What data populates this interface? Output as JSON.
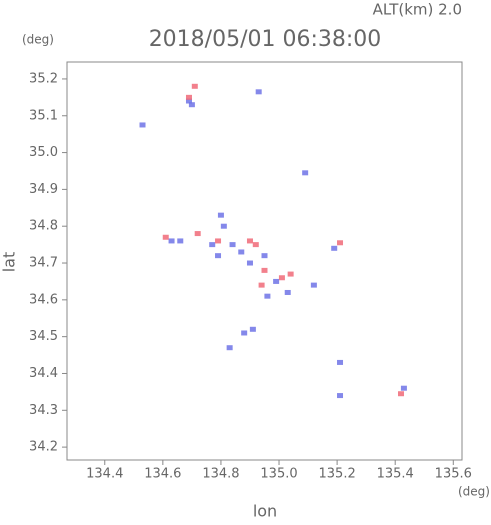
{
  "chart_data": {
    "type": "scatter",
    "title": "2018/05/01 06:38:00",
    "annotation": "ALT(km) 2.0",
    "y_unit": "(deg)",
    "x_unit": "(deg)",
    "x_label": "lon",
    "y_label": "lat",
    "xlim": [
      134.27,
      135.63
    ],
    "ylim": [
      34.165,
      35.246
    ],
    "xticks": [
      134.4,
      134.6,
      134.8,
      {
        "value": 135,
        "label": "135.0"
      },
      135.2,
      135.4,
      135.6
    ],
    "yticks": [
      34.2,
      34.3,
      34.4,
      34.5,
      34.6,
      34.7,
      34.8,
      34.9,
      {
        "value": 35,
        "label": "35.0"
      },
      35.1,
      35.2
    ],
    "series": [
      {
        "color": "#6f73e6",
        "x": [
          134.69,
          134.7,
          134.53,
          134.93,
          135.09,
          134.8,
          134.81,
          134.63,
          134.66,
          134.77,
          134.84,
          134.79,
          134.87,
          134.9,
          134.95,
          134.99,
          135.03,
          134.96,
          135.12,
          134.91,
          134.88,
          134.83,
          135.19,
          135.21,
          135.21,
          135.43
        ],
        "y": [
          35.14,
          35.13,
          35.075,
          35.165,
          34.945,
          34.83,
          34.8,
          34.76,
          34.76,
          34.75,
          34.75,
          34.72,
          34.73,
          34.7,
          34.72,
          34.65,
          34.62,
          34.61,
          34.64,
          34.52,
          34.51,
          34.47,
          34.74,
          34.43,
          34.34,
          34.36
        ]
      },
      {
        "color": "#f06a78",
        "x": [
          134.71,
          134.69,
          134.61,
          134.72,
          134.79,
          134.9,
          134.92,
          134.95,
          135.01,
          135.04,
          135.21,
          135.42,
          134.94
        ],
        "y": [
          35.18,
          35.15,
          34.77,
          34.78,
          34.76,
          34.76,
          34.75,
          34.68,
          34.66,
          34.67,
          34.755,
          34.345,
          34.64
        ]
      }
    ]
  }
}
